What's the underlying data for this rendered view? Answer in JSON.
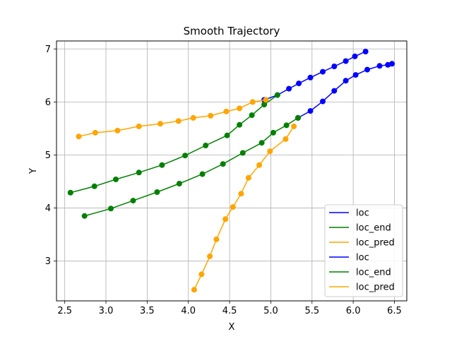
{
  "chart_data": {
    "type": "line",
    "title": "Smooth Trajectory",
    "xlabel": "X",
    "ylabel": "Y",
    "xlim": [
      2.4,
      6.65
    ],
    "ylim": [
      2.25,
      7.15
    ],
    "xticks": [
      "2.5",
      "3.0",
      "3.5",
      "4.0",
      "4.5",
      "5.0",
      "5.5",
      "6.0",
      "6.5"
    ],
    "xtick_values": [
      2.5,
      3.0,
      3.5,
      4.0,
      4.5,
      5.0,
      5.5,
      6.0,
      6.5
    ],
    "yticks": [
      "3",
      "4",
      "5",
      "6",
      "7"
    ],
    "ytick_values": [
      3,
      4,
      5,
      6,
      7
    ],
    "grid": true,
    "legend_position": "lower-right",
    "legend": [
      "loc",
      "loc_end",
      "loc_pred",
      "loc",
      "loc_end",
      "loc_pred"
    ],
    "series": [
      {
        "name": "loc",
        "color": "#0000ff",
        "x": [
          5.33,
          5.48,
          5.63,
          5.77,
          5.91,
          6.03,
          6.17,
          6.32,
          6.42,
          6.47
        ],
        "y": [
          5.7,
          5.83,
          6.01,
          6.21,
          6.4,
          6.51,
          6.61,
          6.68,
          6.7,
          6.72
        ]
      },
      {
        "name": "loc_end",
        "color": "#008000",
        "x": [
          2.74,
          3.06,
          3.33,
          3.62,
          3.89,
          4.17,
          4.42,
          4.66,
          4.89,
          5.03,
          5.19,
          5.33
        ],
        "y": [
          3.85,
          3.99,
          4.14,
          4.3,
          4.46,
          4.64,
          4.83,
          5.04,
          5.23,
          5.42,
          5.56,
          5.7
        ]
      },
      {
        "name": "loc_pred",
        "color": "#ffa500",
        "x": [
          4.07,
          4.16,
          4.26,
          4.34,
          4.45,
          4.54,
          4.64,
          4.73,
          4.86,
          4.99,
          5.18,
          5.28
        ],
        "y": [
          2.46,
          2.75,
          3.09,
          3.41,
          3.79,
          4.02,
          4.27,
          4.57,
          4.81,
          5.07,
          5.3,
          5.54
        ]
      },
      {
        "name": "loc",
        "color": "#0000ff",
        "x": [
          4.92,
          5.08,
          5.22,
          5.34,
          5.48,
          5.63,
          5.77,
          5.91,
          6.02,
          6.15
        ],
        "y": [
          6.04,
          6.13,
          6.25,
          6.35,
          6.46,
          6.57,
          6.67,
          6.77,
          6.86,
          6.95
        ]
      },
      {
        "name": "loc_end",
        "color": "#008000",
        "x": [
          2.57,
          2.86,
          3.12,
          3.4,
          3.68,
          3.96,
          4.21,
          4.47,
          4.62,
          4.77,
          4.92,
          5.08
        ],
        "y": [
          4.29,
          4.41,
          4.54,
          4.67,
          4.81,
          4.99,
          5.18,
          5.37,
          5.57,
          5.75,
          5.95,
          6.13
        ]
      },
      {
        "name": "loc_pred",
        "color": "#ffa500",
        "x": [
          2.67,
          2.87,
          3.14,
          3.4,
          3.66,
          3.88,
          4.06,
          4.27,
          4.46,
          4.62,
          4.78,
          4.94
        ],
        "y": [
          5.35,
          5.42,
          5.46,
          5.54,
          5.59,
          5.64,
          5.7,
          5.74,
          5.82,
          5.88,
          6.0,
          6.04
        ]
      }
    ]
  }
}
